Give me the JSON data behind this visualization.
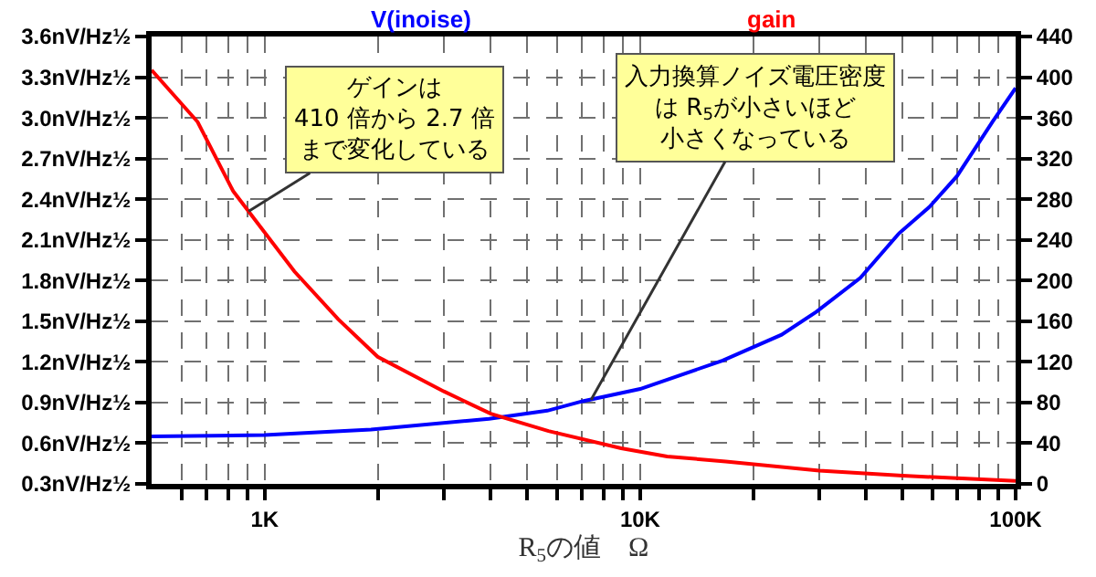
{
  "chart_data": {
    "type": "line",
    "xlabel": "R$_{5}$の値　Ω",
    "log": "x",
    "grid": true,
    "marker": "none",
    "line_style": "solid",
    "xlim": [
      500,
      100000
    ],
    "xticks": [
      {
        "value": 600,
        "label": null
      },
      {
        "value": 700,
        "label": null
      },
      {
        "value": 800,
        "label": null
      },
      {
        "value": 900,
        "label": null
      },
      {
        "value": 1000,
        "label": "1K"
      },
      {
        "value": 2000,
        "label": null
      },
      {
        "value": 3000,
        "label": null
      },
      {
        "value": 4000,
        "label": null
      },
      {
        "value": 5000,
        "label": null
      },
      {
        "value": 6000,
        "label": null
      },
      {
        "value": 7000,
        "label": null
      },
      {
        "value": 8000,
        "label": null
      },
      {
        "value": 9000,
        "label": null
      },
      {
        "value": 10000,
        "label": "10K"
      },
      {
        "value": 20000,
        "label": null
      },
      {
        "value": 30000,
        "label": null
      },
      {
        "value": 40000,
        "label": null
      },
      {
        "value": 50000,
        "label": null
      },
      {
        "value": 60000,
        "label": null
      },
      {
        "value": 70000,
        "label": null
      },
      {
        "value": 80000,
        "label": null
      },
      {
        "value": 90000,
        "label": null
      },
      {
        "value": 100000,
        "label": "100K"
      }
    ],
    "ylim": [
      0.3,
      3.6
    ],
    "yticks": [
      {
        "value": 0.3,
        "label": "0.3nV/Hz½"
      },
      {
        "value": 0.6,
        "label": "0.6nV/Hz½"
      },
      {
        "value": 0.9,
        "label": "0.9nV/Hz½"
      },
      {
        "value": 1.2,
        "label": "1.2nV/Hz½"
      },
      {
        "value": 1.5,
        "label": "1.5nV/Hz½"
      },
      {
        "value": 1.8,
        "label": "1.8nV/Hz½"
      },
      {
        "value": 2.1,
        "label": "2.1nV/Hz½"
      },
      {
        "value": 2.4,
        "label": "2.4nV/Hz½"
      },
      {
        "value": 2.7,
        "label": "2.7nV/Hz½"
      },
      {
        "value": 3.0,
        "label": "3.0nV/Hz½"
      },
      {
        "value": 3.3,
        "label": "3.3nV/Hz½"
      },
      {
        "value": 3.6,
        "label": "3.6nV/Hz½"
      }
    ],
    "y2lim": [
      0,
      440
    ],
    "y2ticks": [
      0,
      40,
      80,
      120,
      160,
      200,
      240,
      280,
      320,
      360,
      400,
      440
    ],
    "series": [
      {
        "name": "V(inoise)",
        "color": "#0000ff",
        "x": [
          500,
          1000,
          1920,
          3960,
          5660,
          7030,
          10000,
          16600,
          23800,
          29500,
          38600,
          49000,
          58800,
          69800,
          86700,
          100000
        ],
        "values": [
          0.65,
          0.66,
          0.7,
          0.78,
          0.84,
          0.91,
          1.0,
          1.21,
          1.4,
          1.57,
          1.82,
          2.15,
          2.34,
          2.57,
          2.97,
          3.22
        ]
      },
      {
        "name": "gain",
        "color": "#ff0000",
        "axis": "y2",
        "x": [
          500,
          663,
          824,
          1200,
          1570,
          2000,
          3000,
          4000,
          5700,
          8900,
          11800,
          16900,
          30000,
          50000,
          100000
        ],
        "values": [
          407,
          356,
          288,
          209,
          162,
          125,
          91,
          69,
          52,
          35,
          27,
          22,
          13,
          8,
          3
        ]
      }
    ],
    "annotations": [
      {
        "text": "ゲインは410 倍から 2.7 倍まで変化している",
        "x": 906,
        "y": 2.31
      },
      {
        "text": "入力換算ノイズ電圧密度は R$_{5}$が小さいほど小さくなっている",
        "x": 7400,
        "y": 0.92
      }
    ]
  }
}
